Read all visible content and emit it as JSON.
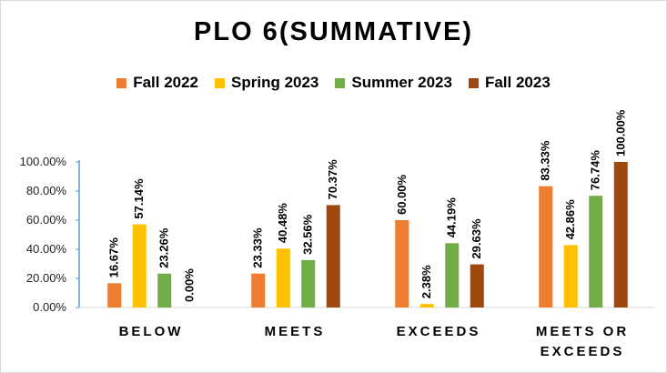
{
  "chart_data": {
    "type": "bar",
    "title": "PLO 6(SUMMATIVE)",
    "categories": [
      "BELOW",
      "MEETS",
      "EXCEEDS",
      "MEETS OR EXCEEDS"
    ],
    "series": [
      {
        "name": "Fall 2022",
        "color": "#ED7D31",
        "values": [
          16.67,
          23.33,
          60.0,
          83.33
        ],
        "labels": [
          "16.67%",
          "23.33%",
          "60.00%",
          "83.33%"
        ]
      },
      {
        "name": "Spring 2023",
        "color": "#FFC000",
        "values": [
          57.14,
          40.48,
          2.38,
          42.86
        ],
        "labels": [
          "57.14%",
          "40.48%",
          "2.38%",
          "42.86%"
        ]
      },
      {
        "name": "Summer 2023",
        "color": "#70AD47",
        "values": [
          23.26,
          32.56,
          44.19,
          76.74
        ],
        "labels": [
          "23.26%",
          "32.56%",
          "44.19%",
          "76.74%"
        ]
      },
      {
        "name": "Fall 2023",
        "color": "#9E480E",
        "values": [
          0.0,
          70.37,
          29.63,
          100.0
        ],
        "labels": [
          "0.00%",
          "70.37%",
          "29.63%",
          "100.00%"
        ]
      }
    ],
    "yticks": [
      0,
      20,
      40,
      60,
      80,
      100
    ],
    "ytick_labels": [
      "0.00%",
      "20.00%",
      "40.00%",
      "60.00%",
      "80.00%",
      "100.00%"
    ],
    "ylim": [
      0,
      100
    ],
    "grid": false,
    "legend_position": "top"
  }
}
